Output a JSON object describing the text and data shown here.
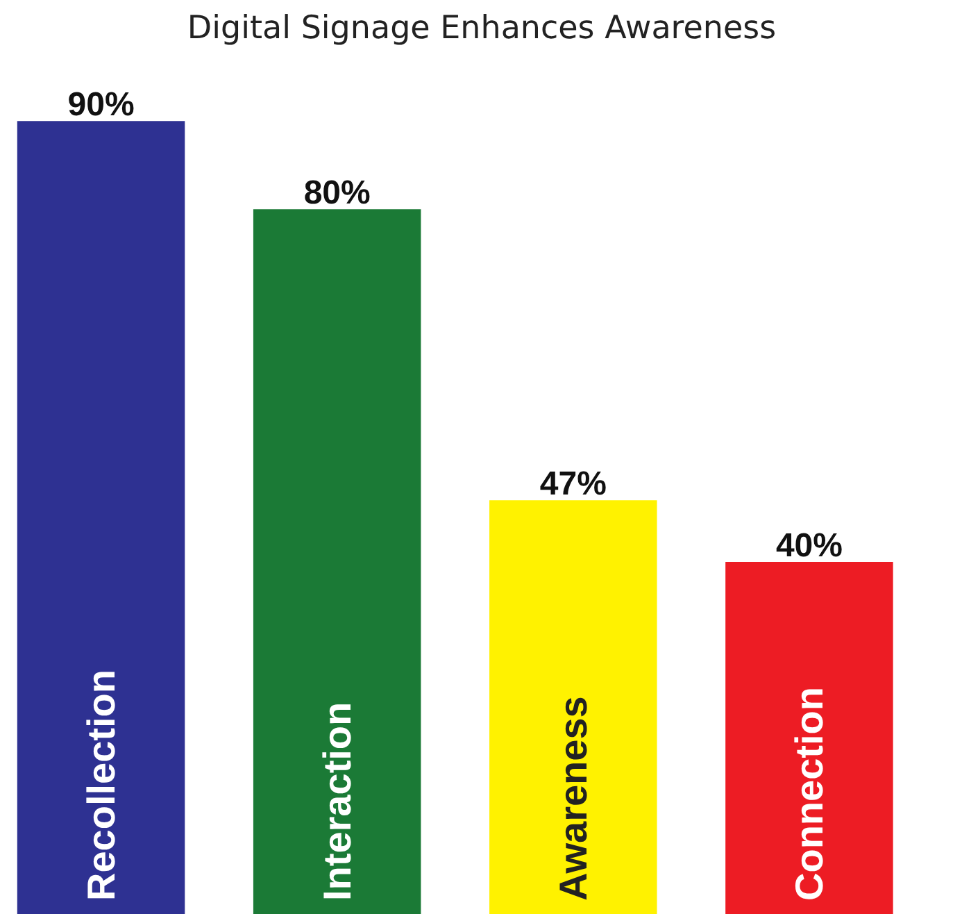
{
  "chart_data": {
    "type": "bar",
    "title": "Digital Signage Enhances Awareness",
    "categories": [
      "Recollection",
      "Interaction",
      "Awareness",
      "Connection"
    ],
    "values": [
      90,
      80,
      47,
      40
    ],
    "colors": [
      "#2e3192",
      "#1b7a36",
      "#fff200",
      "#ed1c24"
    ],
    "value_labels": [
      "90%",
      "80%",
      "47%",
      "40%"
    ]
  }
}
